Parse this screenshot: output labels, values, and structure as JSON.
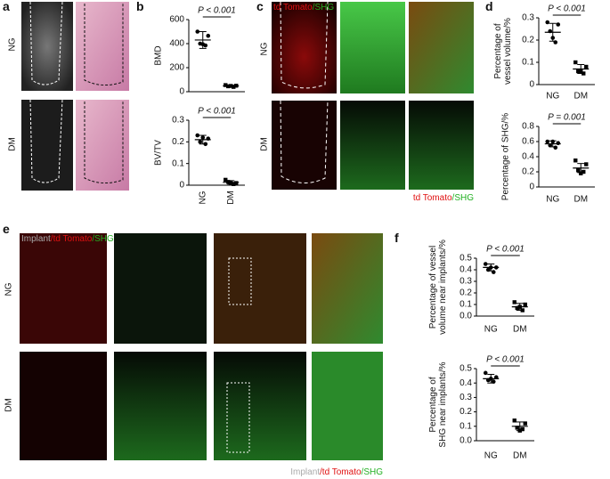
{
  "panel_letters": [
    "a",
    "b",
    "c",
    "d",
    "e",
    "f"
  ],
  "row_labels": {
    "top": "NG",
    "bottom": "DM"
  },
  "c_labels": [
    {
      "text": "td Tomato",
      "color": "#e01010"
    },
    {
      "text": "/SHG",
      "color": "#22b022"
    }
  ],
  "e_labels": [
    {
      "text": "Implant",
      "color": "#aaaaaa"
    },
    {
      "text": "/td Tomato",
      "color": "#e01010"
    },
    {
      "text": "/SHG",
      "color": "#22b022"
    }
  ],
  "chart_data": [
    {
      "type": "dot",
      "ylabel": [
        "BMD"
      ],
      "annotation": "P < 0.001",
      "ylim": [
        0,
        600
      ],
      "yticks": [
        0,
        200,
        400,
        600
      ],
      "groups": [
        {
          "values": [
            500,
            465,
            400,
            385,
            395
          ],
          "mean": 430,
          "sd": 70
        },
        {
          "values": [
            55,
            50,
            45,
            40,
            48
          ],
          "mean": 48,
          "sd": 6
        }
      ]
    },
    {
      "type": "dot",
      "ylabel": [
        "BV/TV"
      ],
      "annotation": "P < 0.001",
      "categories": [
        "NG",
        "DM"
      ],
      "ylim": [
        0,
        0.3
      ],
      "yticks": [
        0,
        0.1,
        0.2,
        0.3
      ],
      "groups": [
        {
          "values": [
            0.23,
            0.215,
            0.2,
            0.19,
            0.22
          ],
          "mean": 0.21,
          "sd": 0.02
        },
        {
          "values": [
            0.025,
            0.01,
            0.015,
            0.005,
            0.01
          ],
          "mean": 0.013,
          "sd": 0.008
        }
      ]
    },
    {
      "type": "dot",
      "ylabel": [
        "Percentage of",
        "vessel volume/%"
      ],
      "annotation": "P < 0.001",
      "categories": [
        "NG",
        "DM"
      ],
      "ylim": [
        0,
        0.3
      ],
      "yticks": [
        0,
        0.1,
        0.2,
        0.3
      ],
      "groups": [
        {
          "values": [
            0.28,
            0.27,
            0.24,
            0.19,
            0.21
          ],
          "mean": 0.235,
          "sd": 0.04
        },
        {
          "values": [
            0.1,
            0.08,
            0.06,
            0.05,
            0.06
          ],
          "mean": 0.07,
          "sd": 0.02
        }
      ]
    },
    {
      "type": "dot",
      "ylabel": [
        "Percentage of SHG/%"
      ],
      "annotation": "P = 0.001",
      "categories": [
        "NG",
        "DM"
      ],
      "ylim": [
        0,
        0.8
      ],
      "yticks": [
        0,
        0.2,
        0.4,
        0.6,
        0.8
      ],
      "groups": [
        {
          "values": [
            0.6,
            0.58,
            0.55,
            0.52,
            0.6
          ],
          "mean": 0.57,
          "sd": 0.04
        },
        {
          "values": [
            0.35,
            0.3,
            0.22,
            0.2,
            0.18
          ],
          "mean": 0.25,
          "sd": 0.06
        }
      ]
    },
    {
      "type": "dot",
      "ylabel": [
        "Percentage of vessel",
        "volume near implants/%"
      ],
      "annotation": "P < 0.001",
      "categories": [
        "NG",
        "DM"
      ],
      "ylim": [
        0,
        0.5
      ],
      "yticks": [
        {
          "value": 0,
          "label": "0.0"
        },
        0.1,
        0.2,
        0.3,
        0.4,
        0.5
      ],
      "groups": [
        {
          "values": [
            0.45,
            0.42,
            0.4,
            0.38,
            0.42
          ],
          "mean": 0.42,
          "sd": 0.03
        },
        {
          "values": [
            0.12,
            0.1,
            0.07,
            0.05,
            0.08
          ],
          "mean": 0.08,
          "sd": 0.03
        }
      ]
    },
    {
      "type": "dot",
      "ylabel": [
        "Percentage of",
        "SHG near implants/%"
      ],
      "annotation": "P < 0.001",
      "categories": [
        "NG",
        "DM"
      ],
      "ylim": [
        0,
        0.5
      ],
      "yticks": [
        {
          "value": 0,
          "label": "0.0"
        },
        0.1,
        0.2,
        0.3,
        0.4,
        0.5
      ],
      "groups": [
        {
          "values": [
            0.47,
            0.44,
            0.42,
            0.41,
            0.43
          ],
          "mean": 0.43,
          "sd": 0.03
        },
        {
          "values": [
            0.14,
            0.12,
            0.09,
            0.08,
            0.07
          ],
          "mean": 0.1,
          "sd": 0.03
        }
      ]
    }
  ]
}
